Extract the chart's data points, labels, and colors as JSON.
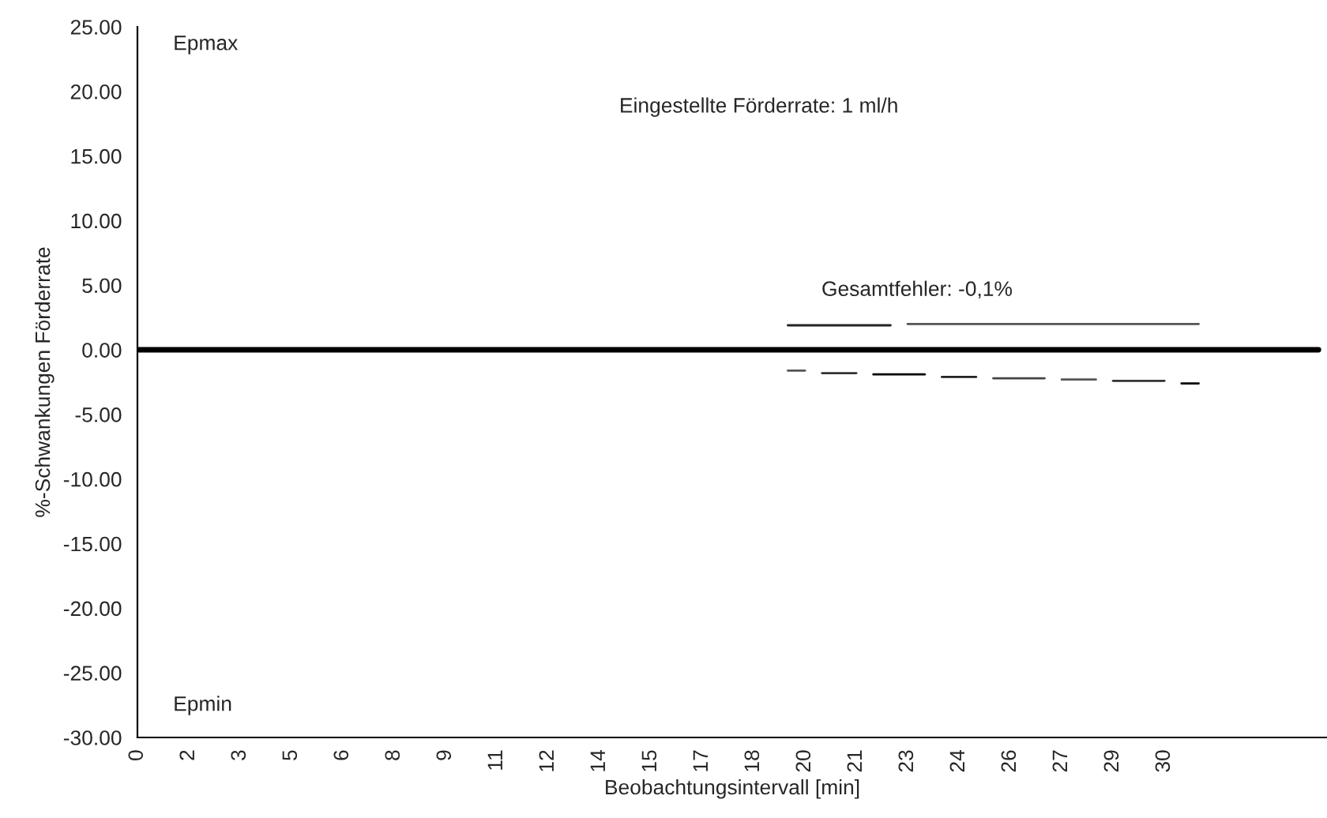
{
  "chart_data": {
    "type": "line",
    "ylabel": "%-Schwankungen Förderrate",
    "xlabel": "Beobachtungsintervall [min]",
    "categories": [
      "0",
      null,
      null,
      "2",
      null,
      null,
      "3",
      null,
      null,
      "5",
      null,
      null,
      "6",
      null,
      null,
      "8",
      null,
      null,
      "9",
      null,
      null,
      "11",
      null,
      null,
      "12",
      null,
      null,
      "14",
      null,
      null,
      "15",
      null,
      null,
      "17",
      null,
      null,
      "18",
      null,
      null,
      "20",
      null,
      null,
      "21",
      null,
      null,
      "23",
      null,
      null,
      "24",
      null,
      null,
      "26",
      null,
      null,
      "27",
      null,
      null,
      "29",
      null,
      null,
      "30",
      null,
      null,
      null,
      null,
      null,
      null,
      null,
      null,
      null
    ],
    "series": [
      {
        "color": "#000000",
        "values": [
          0,
          0,
          0,
          0,
          0,
          0,
          0,
          0,
          0,
          0,
          0,
          0,
          0,
          0,
          0,
          0,
          0,
          0,
          0,
          0,
          0,
          0,
          0,
          0,
          0,
          0,
          0,
          0,
          0,
          0,
          0,
          0,
          0,
          0,
          0,
          0,
          0,
          0,
          0,
          0,
          0,
          0,
          0,
          0,
          0,
          0,
          0,
          0,
          0,
          0,
          0,
          0,
          0,
          0,
          0,
          0,
          0,
          0,
          0,
          0,
          0,
          0,
          0,
          0,
          0,
          0,
          0,
          0,
          0,
          0
        ]
      },
      {
        "color": "#222222",
        "values": [
          null,
          null,
          null,
          null,
          null,
          null,
          null,
          null,
          null,
          null,
          null,
          null,
          null,
          null,
          null,
          null,
          null,
          null,
          null,
          null,
          null,
          null,
          null,
          null,
          null,
          null,
          null,
          null,
          null,
          null,
          null,
          null,
          null,
          null,
          null,
          null,
          null,
          null,
          1.9,
          1.9,
          1.9,
          1.9,
          1.9,
          1.9,
          1.9,
          null,
          null,
          null,
          null,
          null,
          null,
          null,
          null,
          null,
          null,
          null,
          null,
          null,
          null,
          null,
          null,
          null,
          null,
          null,
          null,
          null,
          null,
          null,
          null,
          null
        ]
      },
      {
        "color": "#555555",
        "values": [
          null,
          null,
          null,
          null,
          null,
          null,
          null,
          null,
          null,
          null,
          null,
          null,
          null,
          null,
          null,
          null,
          null,
          null,
          null,
          null,
          null,
          null,
          null,
          null,
          null,
          null,
          null,
          null,
          null,
          null,
          null,
          null,
          null,
          null,
          null,
          null,
          null,
          null,
          null,
          null,
          null,
          null,
          null,
          null,
          null,
          2.0,
          2.0,
          2.0,
          2.0,
          2.0,
          2.0,
          2.0,
          2.0,
          2.0,
          2.0,
          2.0,
          2.0,
          2.0,
          2.0,
          2.0,
          2.0,
          2.0,
          2.0,
          null,
          null,
          null,
          null,
          null,
          null,
          null
        ]
      },
      {
        "color": "#555555",
        "values": [
          null,
          null,
          null,
          null,
          null,
          null,
          null,
          null,
          null,
          null,
          null,
          null,
          null,
          null,
          null,
          null,
          null,
          null,
          null,
          null,
          null,
          null,
          null,
          null,
          null,
          null,
          null,
          null,
          null,
          null,
          null,
          null,
          null,
          null,
          null,
          null,
          null,
          null,
          -1.6,
          -1.6,
          null,
          null,
          null,
          null,
          null,
          null,
          null,
          null,
          null,
          null,
          null,
          null,
          null,
          null,
          null,
          null,
          null,
          null,
          null,
          null,
          null,
          null,
          null,
          null,
          null,
          null,
          null,
          null,
          null,
          null
        ]
      },
      {
        "color": "#333333",
        "values": [
          null,
          null,
          null,
          null,
          null,
          null,
          null,
          null,
          null,
          null,
          null,
          null,
          null,
          null,
          null,
          null,
          null,
          null,
          null,
          null,
          null,
          null,
          null,
          null,
          null,
          null,
          null,
          null,
          null,
          null,
          null,
          null,
          null,
          null,
          null,
          null,
          null,
          null,
          null,
          null,
          -1.8,
          -1.8,
          -1.8,
          null,
          null,
          null,
          null,
          null,
          null,
          null,
          null,
          null,
          null,
          null,
          null,
          null,
          null,
          null,
          null,
          null,
          null,
          null,
          null,
          null,
          null,
          null,
          null,
          null,
          null,
          null
        ]
      },
      {
        "color": "#000000",
        "values": [
          null,
          null,
          null,
          null,
          null,
          null,
          null,
          null,
          null,
          null,
          null,
          null,
          null,
          null,
          null,
          null,
          null,
          null,
          null,
          null,
          null,
          null,
          null,
          null,
          null,
          null,
          null,
          null,
          null,
          null,
          null,
          null,
          null,
          null,
          null,
          null,
          null,
          null,
          null,
          null,
          null,
          null,
          null,
          -1.9,
          -1.9,
          -1.9,
          -1.9,
          null,
          null,
          null,
          null,
          null,
          null,
          null,
          null,
          null,
          null,
          null,
          null,
          null,
          null,
          null,
          null,
          null,
          null,
          null,
          null,
          null,
          null,
          null
        ]
      },
      {
        "color": "#222222",
        "values": [
          null,
          null,
          null,
          null,
          null,
          null,
          null,
          null,
          null,
          null,
          null,
          null,
          null,
          null,
          null,
          null,
          null,
          null,
          null,
          null,
          null,
          null,
          null,
          null,
          null,
          null,
          null,
          null,
          null,
          null,
          null,
          null,
          null,
          null,
          null,
          null,
          null,
          null,
          null,
          null,
          null,
          null,
          null,
          null,
          null,
          null,
          null,
          -2.1,
          -2.1,
          -2.1,
          null,
          null,
          null,
          null,
          null,
          null,
          null,
          null,
          null,
          null,
          null,
          null,
          null,
          null,
          null,
          null,
          null,
          null,
          null,
          null
        ]
      },
      {
        "color": "#444444",
        "values": [
          null,
          null,
          null,
          null,
          null,
          null,
          null,
          null,
          null,
          null,
          null,
          null,
          null,
          null,
          null,
          null,
          null,
          null,
          null,
          null,
          null,
          null,
          null,
          null,
          null,
          null,
          null,
          null,
          null,
          null,
          null,
          null,
          null,
          null,
          null,
          null,
          null,
          null,
          null,
          null,
          null,
          null,
          null,
          null,
          null,
          null,
          null,
          null,
          null,
          null,
          -2.2,
          -2.2,
          -2.2,
          -2.2,
          null,
          null,
          null,
          null,
          null,
          null,
          null,
          null,
          null,
          null,
          null,
          null,
          null,
          null,
          null,
          null
        ]
      },
      {
        "color": "#555555",
        "values": [
          null,
          null,
          null,
          null,
          null,
          null,
          null,
          null,
          null,
          null,
          null,
          null,
          null,
          null,
          null,
          null,
          null,
          null,
          null,
          null,
          null,
          null,
          null,
          null,
          null,
          null,
          null,
          null,
          null,
          null,
          null,
          null,
          null,
          null,
          null,
          null,
          null,
          null,
          null,
          null,
          null,
          null,
          null,
          null,
          null,
          null,
          null,
          null,
          null,
          null,
          null,
          null,
          null,
          null,
          -2.3,
          -2.3,
          -2.3,
          null,
          null,
          null,
          null,
          null,
          null,
          null,
          null,
          null,
          null,
          null,
          null,
          null
        ]
      },
      {
        "color": "#333333",
        "values": [
          null,
          null,
          null,
          null,
          null,
          null,
          null,
          null,
          null,
          null,
          null,
          null,
          null,
          null,
          null,
          null,
          null,
          null,
          null,
          null,
          null,
          null,
          null,
          null,
          null,
          null,
          null,
          null,
          null,
          null,
          null,
          null,
          null,
          null,
          null,
          null,
          null,
          null,
          null,
          null,
          null,
          null,
          null,
          null,
          null,
          null,
          null,
          null,
          null,
          null,
          null,
          null,
          null,
          null,
          null,
          null,
          null,
          -2.4,
          -2.4,
          -2.4,
          -2.4,
          null,
          null,
          null,
          null,
          null,
          null,
          null,
          null,
          null
        ]
      },
      {
        "color": "#000000",
        "values": [
          null,
          null,
          null,
          null,
          null,
          null,
          null,
          null,
          null,
          null,
          null,
          null,
          null,
          null,
          null,
          null,
          null,
          null,
          null,
          null,
          null,
          null,
          null,
          null,
          null,
          null,
          null,
          null,
          null,
          null,
          null,
          null,
          null,
          null,
          null,
          null,
          null,
          null,
          null,
          null,
          null,
          null,
          null,
          null,
          null,
          null,
          null,
          null,
          null,
          null,
          null,
          null,
          null,
          null,
          null,
          null,
          null,
          null,
          null,
          null,
          null,
          -2.6,
          -2.6,
          null,
          null,
          null,
          null,
          null,
          null,
          null
        ]
      }
    ],
    "ylim": [
      -30,
      25
    ],
    "yticks": [
      {
        "value": 25,
        "label": "25.00"
      },
      {
        "value": 20,
        "label": "20.00"
      },
      {
        "value": 15,
        "label": "15.00"
      },
      {
        "value": 10,
        "label": "10.00"
      },
      {
        "value": 5,
        "label": "5.00"
      },
      {
        "value": 0,
        "label": "0.00"
      },
      {
        "value": -5,
        "label": "-5.00"
      },
      {
        "value": -10,
        "label": "-10.00"
      },
      {
        "value": -15,
        "label": "-15.00"
      },
      {
        "value": -20,
        "label": "-20.00"
      },
      {
        "value": -25,
        "label": "-25.00"
      },
      {
        "value": -30,
        "label": "-30.00"
      }
    ],
    "annotations": [
      "Epmax",
      "Eingestellte Förderrate: 1 ml/h",
      "Gesamtfehler: -0,1%",
      "Epmin"
    ],
    "grid": false,
    "legend": false,
    "marker": "none",
    "line_style": "solid"
  }
}
